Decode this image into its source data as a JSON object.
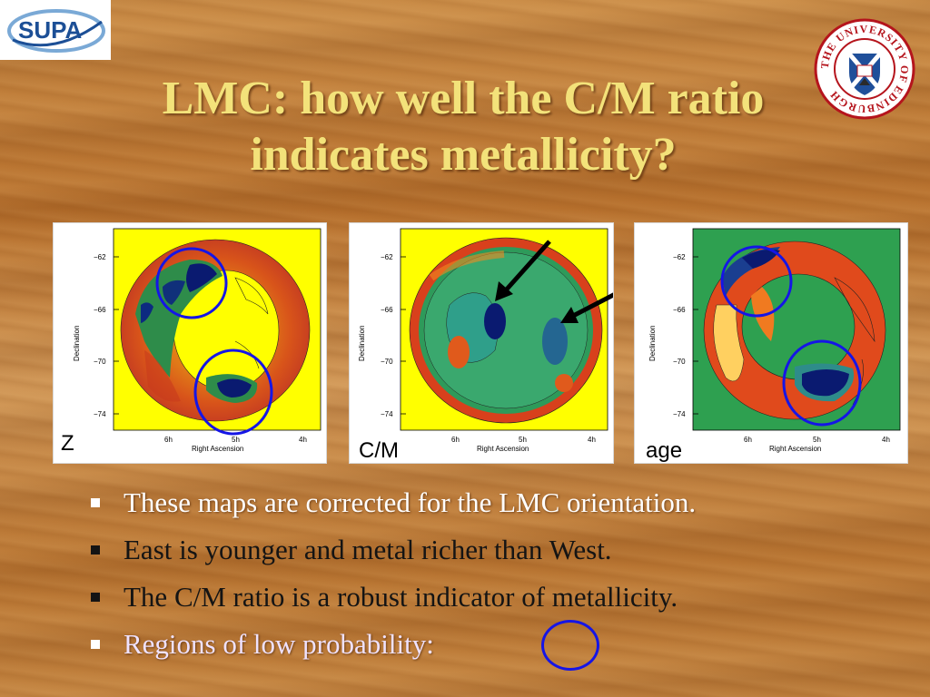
{
  "logos": {
    "supa_text": "SUPA",
    "edinburgh_ring_text": "THE UNIVERSITY OF EDINBURGH"
  },
  "slide": {
    "title_line1": "LMC: how well the C/M ratio",
    "title_line2": "indicates metallicity?"
  },
  "maps": [
    {
      "label": "Z",
      "ylabel": "Declination",
      "xlabel": "Right Ascension",
      "yticks": [
        "−62",
        "−66",
        "−70",
        "−74"
      ],
      "xticks": [
        "6h",
        "5h",
        "4h"
      ]
    },
    {
      "label": "C/M",
      "ylabel": "Declination",
      "xlabel": "Right Ascension",
      "yticks": [
        "−62",
        "−66",
        "−70",
        "−74"
      ],
      "xticks": [
        "6h",
        "5h",
        "4h"
      ]
    },
    {
      "label": "age",
      "ylabel": "Declination",
      "xlabel": "Right Ascension",
      "yticks": [
        "−62",
        "−66",
        "−70",
        "−74"
      ],
      "xticks": [
        "6h",
        "5h",
        "4h"
      ]
    }
  ],
  "bullets": [
    {
      "text": "These maps are corrected for the LMC orientation.",
      "style": "light"
    },
    {
      "text": "East is younger and metal richer than West.",
      "style": "dark"
    },
    {
      "text": "The C/M ratio is a robust indicator of metallicity.",
      "style": "dark"
    },
    {
      "text": "Regions of low probability:",
      "style": "light-blue"
    }
  ],
  "colors": {
    "title": "#f3e27a",
    "circle": "#1515e6",
    "arrow": "#000000"
  }
}
